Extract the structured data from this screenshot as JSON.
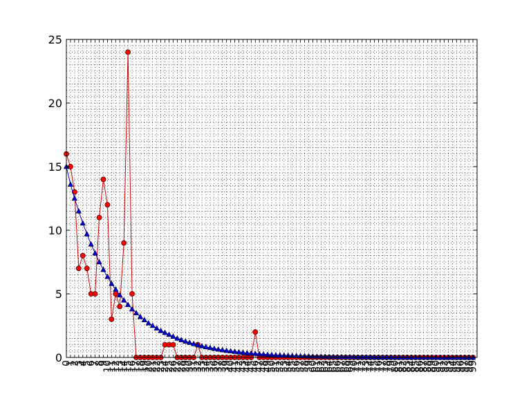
{
  "chart_data": {
    "type": "line",
    "title": "",
    "xlabel": "",
    "ylabel": "",
    "xlim": [
      0,
      100
    ],
    "ylim": [
      0,
      25
    ],
    "yticks": [
      0,
      5,
      10,
      15,
      20,
      25
    ],
    "grid": true,
    "grid_style": "dotted",
    "x": [
      0,
      1,
      2,
      3,
      4,
      5,
      6,
      7,
      8,
      9,
      10,
      11,
      12,
      13,
      14,
      15,
      16,
      17,
      18,
      19,
      20,
      21,
      22,
      23,
      24,
      25,
      26,
      27,
      28,
      29,
      30,
      31,
      32,
      33,
      34,
      35,
      36,
      37,
      38,
      39,
      40,
      41,
      42,
      43,
      44,
      45,
      46,
      47,
      48,
      49,
      50,
      51,
      52,
      53,
      54,
      55,
      56,
      57,
      58,
      59,
      60,
      61,
      62,
      63,
      64,
      65,
      66,
      67,
      68,
      69,
      70,
      71,
      72,
      73,
      74,
      75,
      76,
      77,
      78,
      79,
      80,
      81,
      82,
      83,
      84,
      85,
      86,
      87,
      88,
      89,
      90,
      91,
      92,
      93,
      94,
      95,
      96,
      97,
      98,
      99
    ],
    "series": [
      {
        "color": "#ff0000",
        "line_color": "#cc0000",
        "marker": "circle",
        "values": [
          16,
          15,
          13,
          7,
          8,
          7,
          5,
          5,
          11,
          14,
          12,
          3,
          5,
          4,
          9,
          24,
          5,
          0,
          0,
          0,
          0,
          0,
          0,
          0,
          1,
          1,
          1,
          0,
          0,
          0,
          0,
          0,
          1,
          0,
          0,
          0,
          0,
          0,
          0,
          0,
          0,
          0,
          0,
          0,
          0,
          0,
          2,
          0,
          0,
          0,
          0,
          0,
          0,
          0,
          0,
          0,
          0,
          0,
          0,
          0,
          0,
          0,
          0,
          0,
          0,
          0,
          0,
          0,
          0,
          0,
          0,
          0,
          0,
          0,
          0,
          0,
          0,
          0,
          0,
          0,
          0,
          0,
          0,
          0,
          0,
          0,
          0,
          0,
          0,
          0,
          0,
          0,
          0,
          0,
          0,
          0,
          0,
          0,
          0,
          0
        ]
      },
      {
        "color": "#0000cc",
        "line_color": "#0000cc",
        "marker": "triangle",
        "values": [
          15.0,
          13.6,
          12.5,
          11.5,
          10.55,
          9.7,
          8.9,
          8.2,
          7.5,
          6.9,
          6.35,
          5.8,
          5.35,
          4.9,
          4.5,
          4.15,
          3.8,
          3.5,
          3.2,
          2.95,
          2.7,
          2.5,
          2.3,
          2.1,
          1.95,
          1.8,
          1.65,
          1.5,
          1.38,
          1.27,
          1.17,
          1.07,
          0.98,
          0.9,
          0.83,
          0.76,
          0.7,
          0.64,
          0.59,
          0.54,
          0.5,
          0.46,
          0.42,
          0.39,
          0.35,
          0.33,
          0.3,
          0.27,
          0.25,
          0.23,
          0.21,
          0.19,
          0.18,
          0.16,
          0.15,
          0.14,
          0.13,
          0.12,
          0.11,
          0.1,
          0.09,
          0.08,
          0.08,
          0.07,
          0.06,
          0.06,
          0.05,
          0.05,
          0.04,
          0.04,
          0.04,
          0.03,
          0.03,
          0.03,
          0.03,
          0.02,
          0.02,
          0.02,
          0.02,
          0.02,
          0.01,
          0.01,
          0.01,
          0.01,
          0.01,
          0.01,
          0.01,
          0.01,
          0.01,
          0.01,
          0.0,
          0.0,
          0.0,
          0.0,
          0.0,
          0.0,
          0.0,
          0.0,
          0.0,
          0.0
        ]
      }
    ]
  }
}
